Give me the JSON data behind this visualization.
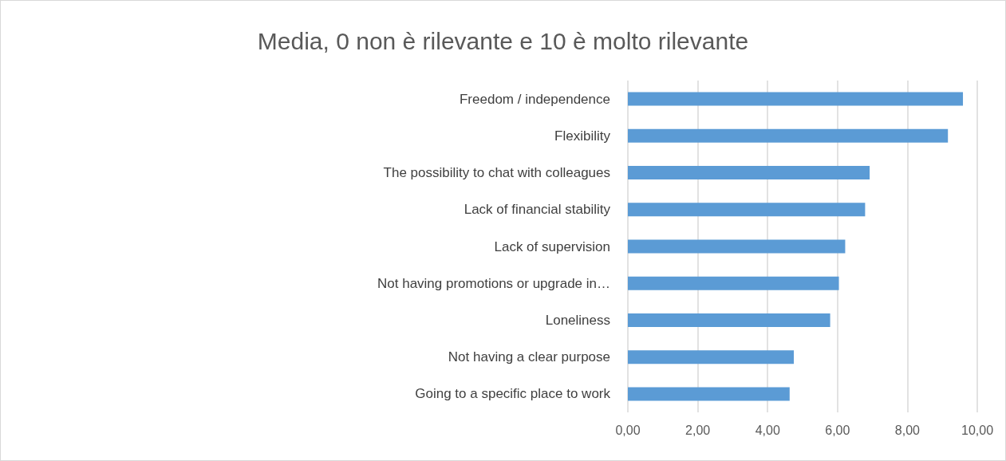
{
  "chart_data": {
    "type": "bar",
    "orientation": "horizontal",
    "title": "Media, 0 non è rilevante e 10 è molto rilevante",
    "categories": [
      "Freedom / independence",
      "Flexibility",
      "The possibility to chat with colleagues",
      "Lack of financial stability",
      "Lack of supervision",
      "Not having promotions or upgrade in…",
      "Loneliness",
      "Not having a clear purpose",
      "Going to a specific place to work"
    ],
    "values": [
      9.59,
      9.16,
      6.92,
      6.79,
      6.22,
      6.04,
      5.79,
      4.75,
      4.63
    ],
    "color": "#5b9bd5",
    "xlim": [
      0,
      10
    ],
    "xticks": [
      {
        "value": 0,
        "label": "0,00"
      },
      {
        "value": 2,
        "label": "2,00"
      },
      {
        "value": 4,
        "label": "4,00"
      },
      {
        "value": 6,
        "label": "6,00"
      },
      {
        "value": 8,
        "label": "8,00"
      },
      {
        "value": 10,
        "label": "10,00"
      }
    ],
    "grid": "x"
  }
}
